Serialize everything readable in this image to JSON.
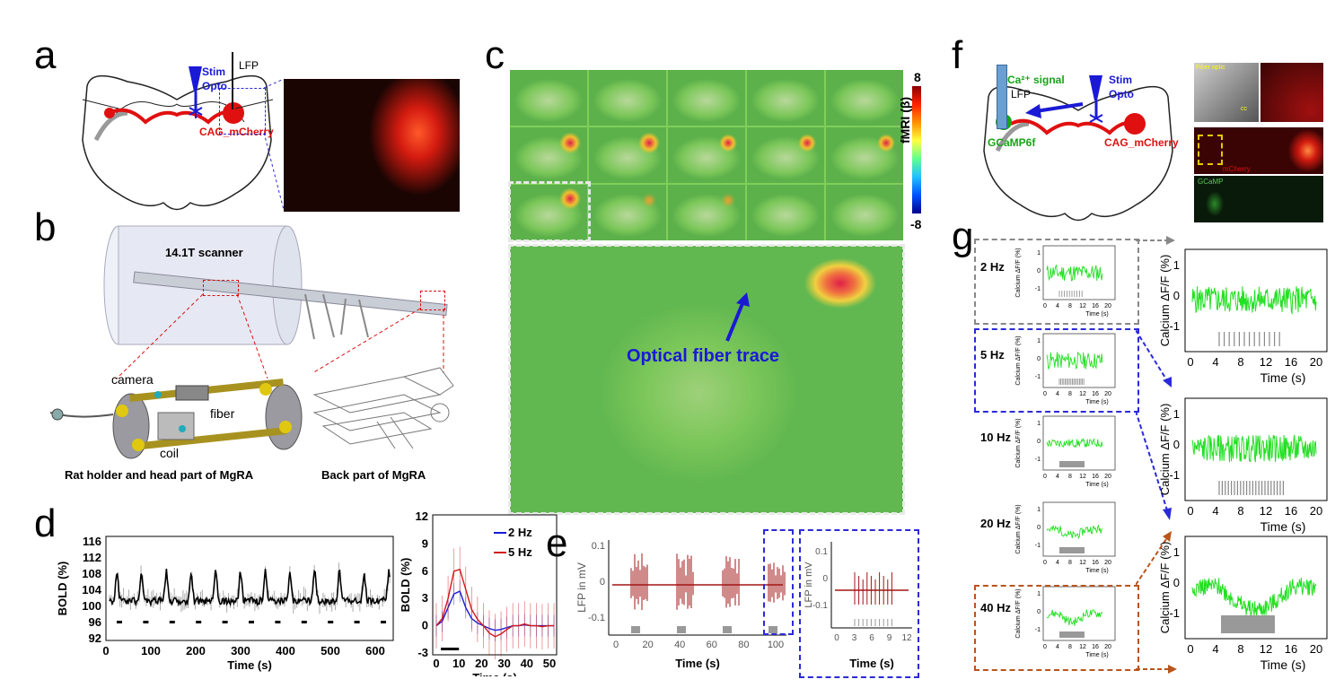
{
  "panels": {
    "a": "a",
    "b": "b",
    "c": "c",
    "d": "d",
    "e": "e",
    "f": "f",
    "g": "g"
  },
  "colors": {
    "blue": "#1a1ad6",
    "red": "#d11a1a",
    "green": "#18a418",
    "trace_green": "#22e022",
    "lfp": "#a31515",
    "gray": "#888888"
  },
  "panel_a": {
    "stim": "Stim",
    "opto": "Opto",
    "lfp": "LFP",
    "cag": "CAG_mCherry"
  },
  "panel_b": {
    "scanner": "14.1T scanner",
    "camera": "camera",
    "fiber": "fiber",
    "coil": "coil",
    "caption_left": "Rat holder and head part of MgRA",
    "caption_right": "Back part of MgRA"
  },
  "panel_c": {
    "colorbar_max": "8",
    "colorbar_min": "-8",
    "colorbar_label": "fMRI (β)",
    "annotation": "Optical fiber trace"
  },
  "panel_d": {
    "ylabel": "BOLD (%)",
    "xlabel": "Time (s)",
    "left_yticks": [
      "116",
      "112",
      "108",
      "104",
      "100",
      "96",
      "92"
    ],
    "left_xticks": [
      "0",
      "100",
      "200",
      "300",
      "400",
      "500",
      "600"
    ],
    "right_yticks": [
      "12",
      "9",
      "6",
      "3",
      "0",
      "-3"
    ],
    "right_xticks": [
      "0",
      "10",
      "20",
      "30",
      "40",
      "50"
    ],
    "legend": [
      {
        "name": "2 Hz",
        "color": "#1a1ad6"
      },
      {
        "name": "5 Hz",
        "color": "#d11a1a"
      }
    ]
  },
  "panel_e": {
    "ylabel": "LFP in mV",
    "xlabel": "Time (s)",
    "yticks": [
      "0.1",
      "0",
      "-0.1"
    ],
    "xticks": [
      "0",
      "20",
      "40",
      "60",
      "80",
      "100"
    ],
    "inset_yticks": [
      "0.1",
      "0",
      "-0.1"
    ],
    "inset_xticks": [
      "0",
      "3",
      "6",
      "9",
      "12"
    ]
  },
  "panel_f": {
    "ca_signal": "Ca²⁺ signal",
    "lfp": "LFP",
    "stim": "Stim",
    "opto": "Opto",
    "gcamp": "GCaMP6f",
    "cag": "CAG_mCherry",
    "fiber_optic": "Fiber optic",
    "cc": "cc",
    "mcherry": "mCherry",
    "gcamp_img": "GCaMP"
  },
  "panel_g": {
    "rows": [
      {
        "label": "2 Hz"
      },
      {
        "label": "5 Hz"
      },
      {
        "label": "10 Hz"
      },
      {
        "label": "20 Hz"
      },
      {
        "label": "40 Hz"
      }
    ],
    "small_ylabel": "Calcium ΔF/F (%)",
    "small_yticks": [
      "1",
      "0",
      "-1"
    ],
    "small_xticks": [
      "0",
      "4",
      "8",
      "12",
      "16",
      "20"
    ],
    "small_xlabel": "Time (s)",
    "big_ylabel": "Calcium ΔF/F (%)",
    "big_yticks": [
      "1",
      "0",
      "-1"
    ],
    "big_xticks": [
      "0",
      "4",
      "8",
      "12",
      "16",
      "20"
    ],
    "big_xlabel": "Time (s)"
  }
}
